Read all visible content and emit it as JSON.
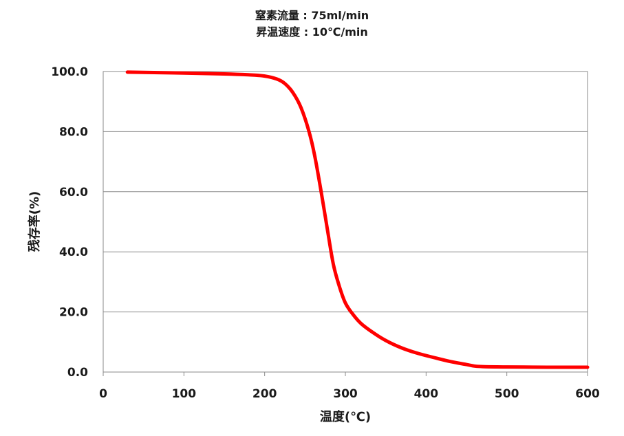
{
  "chart_data": {
    "type": "line",
    "title_lines": [
      "窒素流量 : 75ml/min",
      "昇温速度 : 10℃/min"
    ],
    "xlabel": "温度(℃)",
    "ylabel": "残存率(%)",
    "xlim": [
      0,
      600
    ],
    "ylim": [
      0,
      100
    ],
    "xticks": [
      "0",
      "100",
      "200",
      "300",
      "400",
      "500",
      "600"
    ],
    "yticks": [
      "0.0",
      "20.0",
      "40.0",
      "60.0",
      "80.0",
      "100.0"
    ],
    "grid": "horizontal",
    "line_color": "#ff0000",
    "series": [
      {
        "x": [
          30,
          100,
          150,
          180,
          200,
          215,
          225,
          235,
          245,
          255,
          262,
          270,
          278,
          285,
          292,
          300,
          310,
          320,
          335,
          350,
          370,
          390,
          410,
          430,
          450,
          460,
          470,
          500,
          550,
          600
        ],
        "y": [
          99.8,
          99.5,
          99.2,
          98.9,
          98.5,
          97.5,
          96.0,
          93.0,
          88.0,
          80.0,
          72.0,
          60.0,
          47.0,
          36.0,
          29.0,
          23.0,
          19.0,
          16.0,
          13.0,
          10.5,
          8.0,
          6.2,
          4.8,
          3.5,
          2.5,
          2.0,
          1.8,
          1.7,
          1.6,
          1.6
        ]
      }
    ]
  }
}
